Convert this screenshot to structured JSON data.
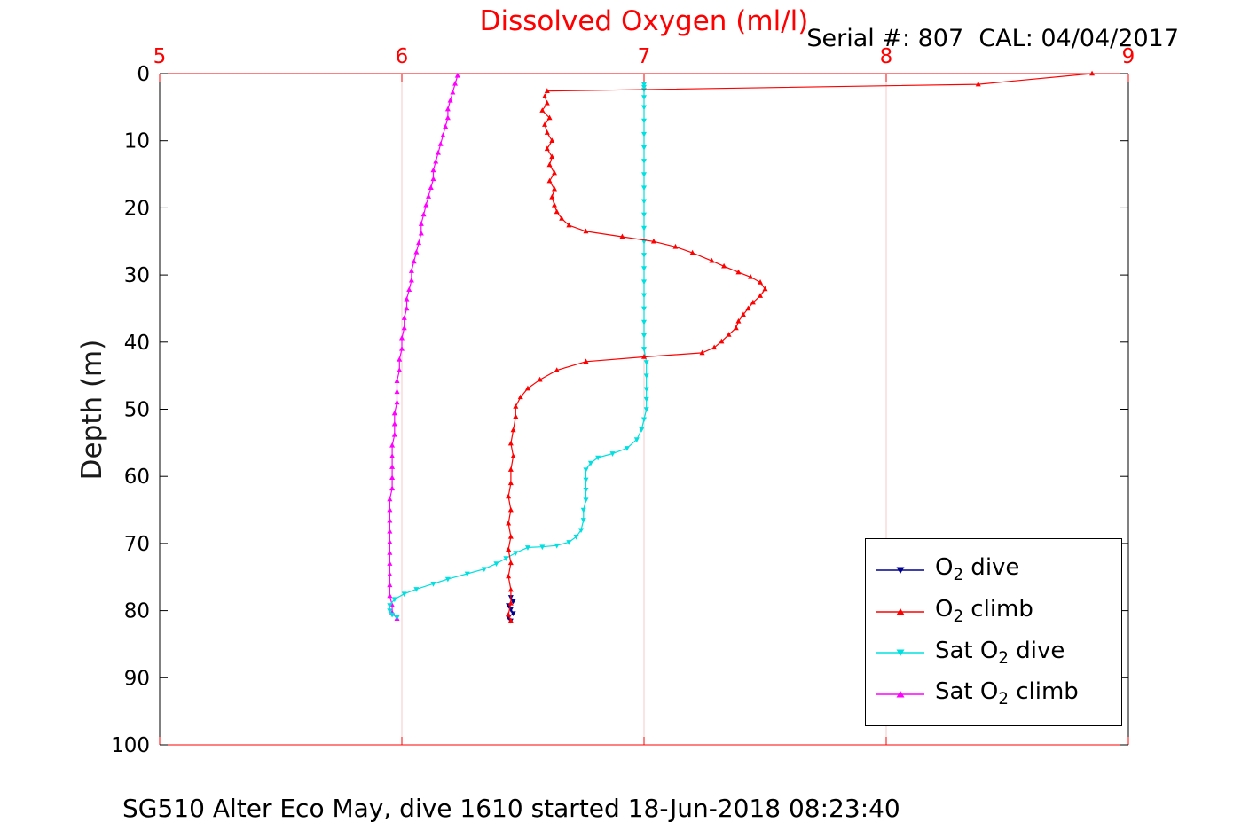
{
  "header": {
    "serial_text": "Serial #: 807  CAL: 04/04/2017"
  },
  "caption": "SG510 Alter Eco May, dive 1610 started 18-Jun-2018 08:23:40",
  "colors": {
    "title": "#ff0000",
    "x_axis": "#ff0000",
    "y_axis": "#000000",
    "grid": "#f6caca",
    "o2_dive": "#00008f",
    "o2_climb": "#ff0000",
    "sat_o2_dive": "#00e0e0",
    "sat_o2_climb": "#ff00ff",
    "legend_border": "#000000"
  },
  "chart_data": {
    "type": "line",
    "title": "Dissolved Oxygen (ml/l)",
    "xlabel": "",
    "ylabel": "Depth (m)",
    "xlim": [
      5,
      9
    ],
    "ylim": [
      0,
      100
    ],
    "y_inverted": true,
    "x_axis_location": "top",
    "x_ticks": [
      5,
      6,
      7,
      8,
      9
    ],
    "y_ticks": [
      0,
      10,
      20,
      30,
      40,
      50,
      60,
      70,
      80,
      90,
      100
    ],
    "grid_x": [
      6,
      7,
      8
    ],
    "legend_position": "lower-right",
    "series": [
      {
        "id": "sat-o2-climb",
        "name": "Sat O2 climb",
        "color_key": "sat_o2_climb",
        "marker": "up",
        "points": [
          [
            6.23,
            0.3
          ],
          [
            6.22,
            1.5
          ],
          [
            6.21,
            2.8
          ],
          [
            6.2,
            4.0
          ],
          [
            6.19,
            5.3
          ],
          [
            6.19,
            6.6
          ],
          [
            6.18,
            7.9
          ],
          [
            6.17,
            9.2
          ],
          [
            6.16,
            10.5
          ],
          [
            6.15,
            11.8
          ],
          [
            6.14,
            13.1
          ],
          [
            6.13,
            14.4
          ],
          [
            6.13,
            15.7
          ],
          [
            6.12,
            17.0
          ],
          [
            6.11,
            18.3
          ],
          [
            6.1,
            19.6
          ],
          [
            6.09,
            21.0
          ],
          [
            6.08,
            22.4
          ],
          [
            6.08,
            23.8
          ],
          [
            6.07,
            25.2
          ],
          [
            6.06,
            26.6
          ],
          [
            6.05,
            28.0
          ],
          [
            6.04,
            29.4
          ],
          [
            6.04,
            30.8
          ],
          [
            6.03,
            32.2
          ],
          [
            6.02,
            33.6
          ],
          [
            6.02,
            35.0
          ],
          [
            6.01,
            36.4
          ],
          [
            6.01,
            37.9
          ],
          [
            6.0,
            39.4
          ],
          [
            6.0,
            41.0
          ],
          [
            5.99,
            42.6
          ],
          [
            5.99,
            44.2
          ],
          [
            5.98,
            45.8
          ],
          [
            5.98,
            47.4
          ],
          [
            5.98,
            49.0
          ],
          [
            5.97,
            50.6
          ],
          [
            5.97,
            52.2
          ],
          [
            5.97,
            53.8
          ],
          [
            5.96,
            55.4
          ],
          [
            5.96,
            57.0
          ],
          [
            5.96,
            58.6
          ],
          [
            5.96,
            60.2
          ],
          [
            5.96,
            61.8
          ],
          [
            5.95,
            63.4
          ],
          [
            5.95,
            65.0
          ],
          [
            5.95,
            66.6
          ],
          [
            5.95,
            68.2
          ],
          [
            5.95,
            69.8
          ],
          [
            5.95,
            71.4
          ],
          [
            5.95,
            73.0
          ],
          [
            5.95,
            74.6
          ],
          [
            5.95,
            76.2
          ],
          [
            5.95,
            77.8
          ],
          [
            5.96,
            79.2
          ],
          [
            5.96,
            80.3
          ],
          [
            5.98,
            81.2
          ]
        ]
      },
      {
        "id": "sat-o2-dive",
        "name": "Sat O2 dive",
        "color_key": "sat_o2_dive",
        "marker": "down",
        "points": [
          [
            7.0,
            1.6
          ],
          [
            7.0,
            2.0
          ],
          [
            7.0,
            2.4
          ],
          [
            7.0,
            3.5
          ],
          [
            7.0,
            5.0
          ],
          [
            7.0,
            7.0
          ],
          [
            7.0,
            9.0
          ],
          [
            7.0,
            11.0
          ],
          [
            7.0,
            13.0
          ],
          [
            7.0,
            15.0
          ],
          [
            7.0,
            17.0
          ],
          [
            7.0,
            19.0
          ],
          [
            7.0,
            21.0
          ],
          [
            7.0,
            23.0
          ],
          [
            7.0,
            25.0
          ],
          [
            7.0,
            27.0
          ],
          [
            7.0,
            29.0
          ],
          [
            7.0,
            31.0
          ],
          [
            7.0,
            33.0
          ],
          [
            7.0,
            35.0
          ],
          [
            7.0,
            37.0
          ],
          [
            7.0,
            39.0
          ],
          [
            7.0,
            41.0
          ],
          [
            7.01,
            43.0
          ],
          [
            7.01,
            45.0
          ],
          [
            7.01,
            47.0
          ],
          [
            7.01,
            48.5
          ],
          [
            7.01,
            50.0
          ],
          [
            7.0,
            51.5
          ],
          [
            6.99,
            53.0
          ],
          [
            6.97,
            54.5
          ],
          [
            6.93,
            55.8
          ],
          [
            6.87,
            56.6
          ],
          [
            6.81,
            57.2
          ],
          [
            6.78,
            58.0
          ],
          [
            6.76,
            59.0
          ],
          [
            6.76,
            60.5
          ],
          [
            6.76,
            62.0
          ],
          [
            6.76,
            63.5
          ],
          [
            6.75,
            65.0
          ],
          [
            6.75,
            66.5
          ],
          [
            6.74,
            68.0
          ],
          [
            6.72,
            69.0
          ],
          [
            6.69,
            69.8
          ],
          [
            6.64,
            70.3
          ],
          [
            6.58,
            70.5
          ],
          [
            6.52,
            70.6
          ],
          [
            6.47,
            71.4
          ],
          [
            6.43,
            72.2
          ],
          [
            6.39,
            73.0
          ],
          [
            6.34,
            73.8
          ],
          [
            6.27,
            74.5
          ],
          [
            6.19,
            75.3
          ],
          [
            6.13,
            76.0
          ],
          [
            6.06,
            76.8
          ],
          [
            6.01,
            77.5
          ],
          [
            5.97,
            78.3
          ],
          [
            5.95,
            79.2
          ],
          [
            5.95,
            80.0
          ],
          [
            5.96,
            80.6
          ],
          [
            5.98,
            81.0
          ]
        ]
      },
      {
        "id": "o2-dive",
        "name": "O2 dive",
        "color_key": "o2_dive",
        "marker": "down",
        "points": [
          [
            6.45,
            78.0
          ],
          [
            6.46,
            78.6
          ],
          [
            6.44,
            79.2
          ],
          [
            6.45,
            79.8
          ],
          [
            6.46,
            80.4
          ],
          [
            6.44,
            81.0
          ],
          [
            6.45,
            81.5
          ]
        ]
      },
      {
        "id": "o2-climb",
        "name": "O2 climb",
        "color_key": "o2_climb",
        "marker": "up",
        "points": [
          [
            8.85,
            0.0
          ],
          [
            8.38,
            1.6
          ],
          [
            6.6,
            2.6
          ],
          [
            6.59,
            3.4
          ],
          [
            6.6,
            4.4
          ],
          [
            6.58,
            5.5
          ],
          [
            6.61,
            6.6
          ],
          [
            6.59,
            7.6
          ],
          [
            6.6,
            8.8
          ],
          [
            6.62,
            10.0
          ],
          [
            6.6,
            11.2
          ],
          [
            6.62,
            12.4
          ],
          [
            6.61,
            13.6
          ],
          [
            6.63,
            14.8
          ],
          [
            6.61,
            16.0
          ],
          [
            6.63,
            17.2
          ],
          [
            6.62,
            18.4
          ],
          [
            6.63,
            19.6
          ],
          [
            6.64,
            20.6
          ],
          [
            6.66,
            21.6
          ],
          [
            6.69,
            22.6
          ],
          [
            6.76,
            23.5
          ],
          [
            6.91,
            24.3
          ],
          [
            7.04,
            25.0
          ],
          [
            7.13,
            25.8
          ],
          [
            7.2,
            26.7
          ],
          [
            7.28,
            27.9
          ],
          [
            7.33,
            28.7
          ],
          [
            7.39,
            29.6
          ],
          [
            7.44,
            30.3
          ],
          [
            7.48,
            31.1
          ],
          [
            7.5,
            32.1
          ],
          [
            7.48,
            33.1
          ],
          [
            7.45,
            34.1
          ],
          [
            7.43,
            35.0
          ],
          [
            7.41,
            35.9
          ],
          [
            7.39,
            36.9
          ],
          [
            7.38,
            37.9
          ],
          [
            7.35,
            38.9
          ],
          [
            7.32,
            39.9
          ],
          [
            7.29,
            40.8
          ],
          [
            7.24,
            41.6
          ],
          [
            7.0,
            42.2
          ],
          [
            6.76,
            42.9
          ],
          [
            6.64,
            44.2
          ],
          [
            6.57,
            45.6
          ],
          [
            6.52,
            46.9
          ],
          [
            6.49,
            48.2
          ],
          [
            6.47,
            49.6
          ],
          [
            6.47,
            51.1
          ],
          [
            6.46,
            53.1
          ],
          [
            6.45,
            55.1
          ],
          [
            6.46,
            57.0
          ],
          [
            6.45,
            59.0
          ],
          [
            6.45,
            61.0
          ],
          [
            6.44,
            63.0
          ],
          [
            6.45,
            65.0
          ],
          [
            6.44,
            67.0
          ],
          [
            6.45,
            69.0
          ],
          [
            6.44,
            70.9
          ],
          [
            6.45,
            72.9
          ],
          [
            6.44,
            74.9
          ],
          [
            6.45,
            76.9
          ],
          [
            6.45,
            78.9
          ],
          [
            6.44,
            80.6
          ],
          [
            6.45,
            81.5
          ]
        ]
      }
    ]
  },
  "legend": {
    "entries": [
      {
        "id": "o2-dive",
        "pre": "O",
        "sub": "2",
        "post": " dive",
        "series": "o2_dive",
        "marker": "down"
      },
      {
        "id": "o2-climb",
        "pre": "O",
        "sub": "2",
        "post": " climb",
        "series": "o2_climb",
        "marker": "up"
      },
      {
        "id": "sat-o2-dive",
        "pre": "Sat O",
        "sub": "2",
        "post": " dive",
        "series": "sat_o2_dive",
        "marker": "down"
      },
      {
        "id": "sat-o2-climb",
        "pre": "Sat O",
        "sub": "2",
        "post": " climb",
        "series": "sat_o2_climb",
        "marker": "up"
      }
    ]
  }
}
